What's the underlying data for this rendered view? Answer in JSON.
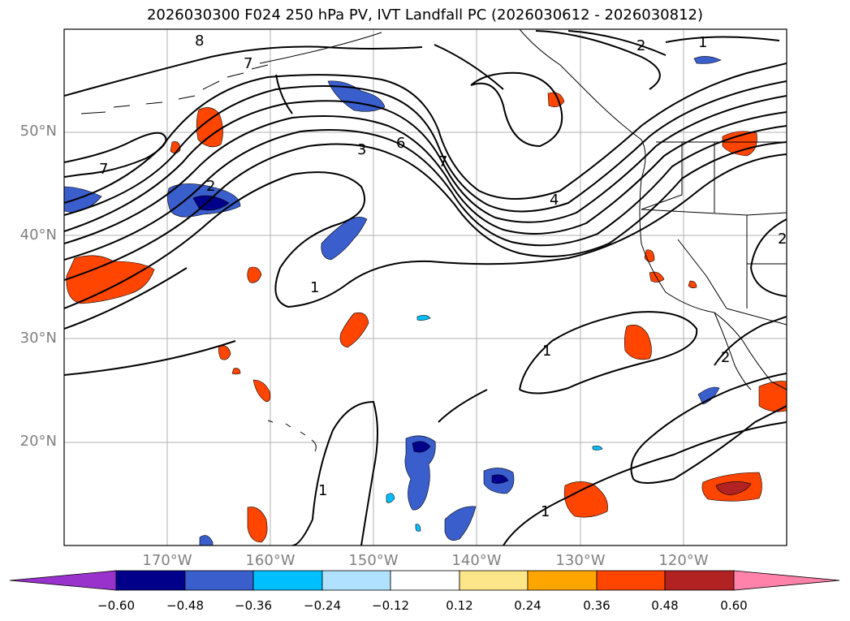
{
  "title": "2026030300 F024 250 hPa PV, IVT Landfall PC (2026030612 - 2026030812)",
  "axes": {
    "lat_labels": [
      "50°N",
      "40°N",
      "30°N",
      "20°N"
    ],
    "lon_labels": [
      "170°W",
      "160°W",
      "150°W",
      "140°W",
      "130°W",
      "120°W"
    ],
    "lon_range": [
      -180,
      -110
    ],
    "lat_range": [
      10,
      60
    ]
  },
  "colorbar": {
    "tick_labels": [
      "−0.60",
      "−0.48",
      "−0.36",
      "−0.24",
      "−0.12",
      "0.12",
      "0.24",
      "0.36",
      "0.48",
      "0.60"
    ],
    "bounds": [
      -0.6,
      -0.48,
      -0.36,
      -0.24,
      -0.12,
      0.12,
      0.24,
      0.36,
      0.48,
      0.6
    ],
    "colors": [
      "#9932cc",
      "#00008b",
      "#3a5fcd",
      "#00bfff",
      "#b0e2ff",
      "#ffffff",
      "#fde68a",
      "#ffa500",
      "#ff4500",
      "#b22222",
      "#ff82ab"
    ]
  },
  "contour_labels": [
    "8",
    "7",
    "7",
    "2",
    "3",
    "6",
    "7",
    "4",
    "2",
    "1",
    "1",
    "1",
    "1",
    "1",
    "2",
    "2"
  ]
}
